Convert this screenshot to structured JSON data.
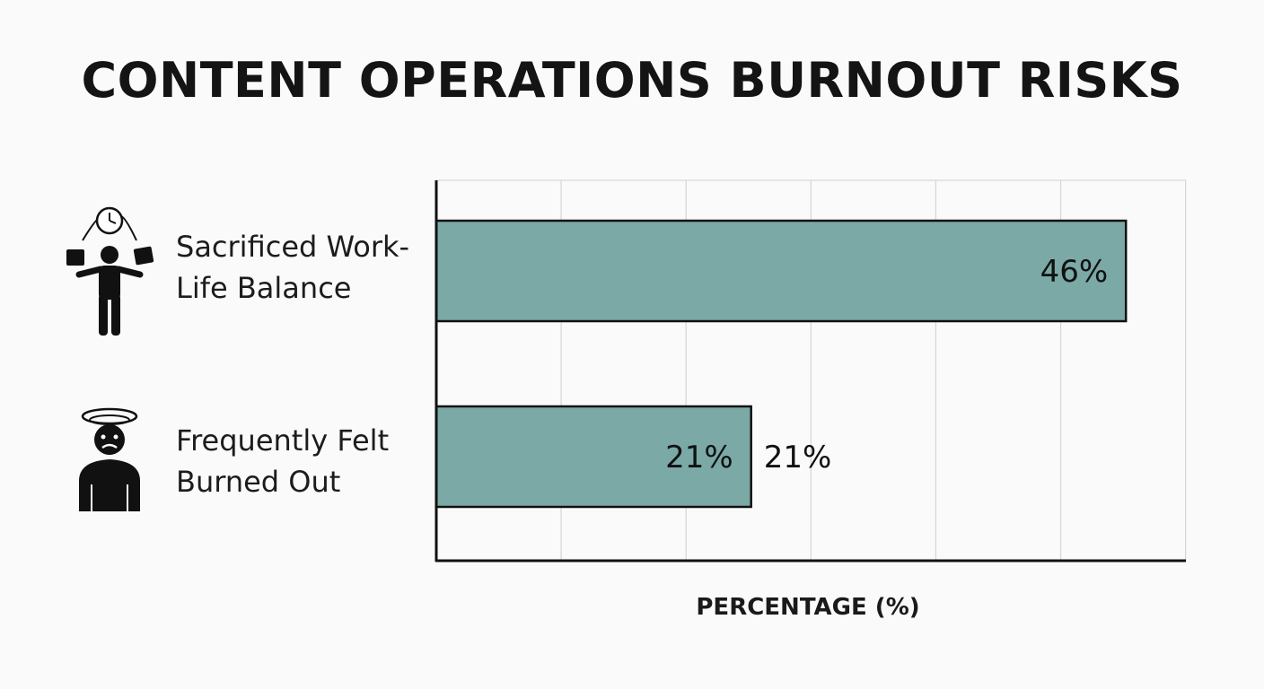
{
  "chart_data": {
    "type": "bar",
    "orientation": "horizontal",
    "title": "CONTENT OPERATIONS BURNOUT RISKS",
    "xlabel": "PERCENTAGE (%)",
    "ylabel": "",
    "categories": [
      "Sacrificed Work-Life Balance",
      "Frequently Felt Burned Out"
    ],
    "category_lines": [
      [
        "Sacrificed Work-",
        "Life Balance"
      ],
      [
        "Frequently Felt",
        "Burned Out"
      ]
    ],
    "values": [
      46,
      21
    ],
    "data_labels": [
      [
        "46%"
      ],
      [
        "21%",
        "21%"
      ]
    ],
    "xlim": [
      0,
      50
    ],
    "x_gridline_step": 8.33,
    "grid": true,
    "legend": "none",
    "icons": [
      "juggling-person-clock-icon",
      "dizzy-person-icon"
    ],
    "colors": {
      "bar": "#7aa9a6",
      "bar_outline": "#111111",
      "grid": "#d6d6d6",
      "axis": "#111111"
    }
  }
}
